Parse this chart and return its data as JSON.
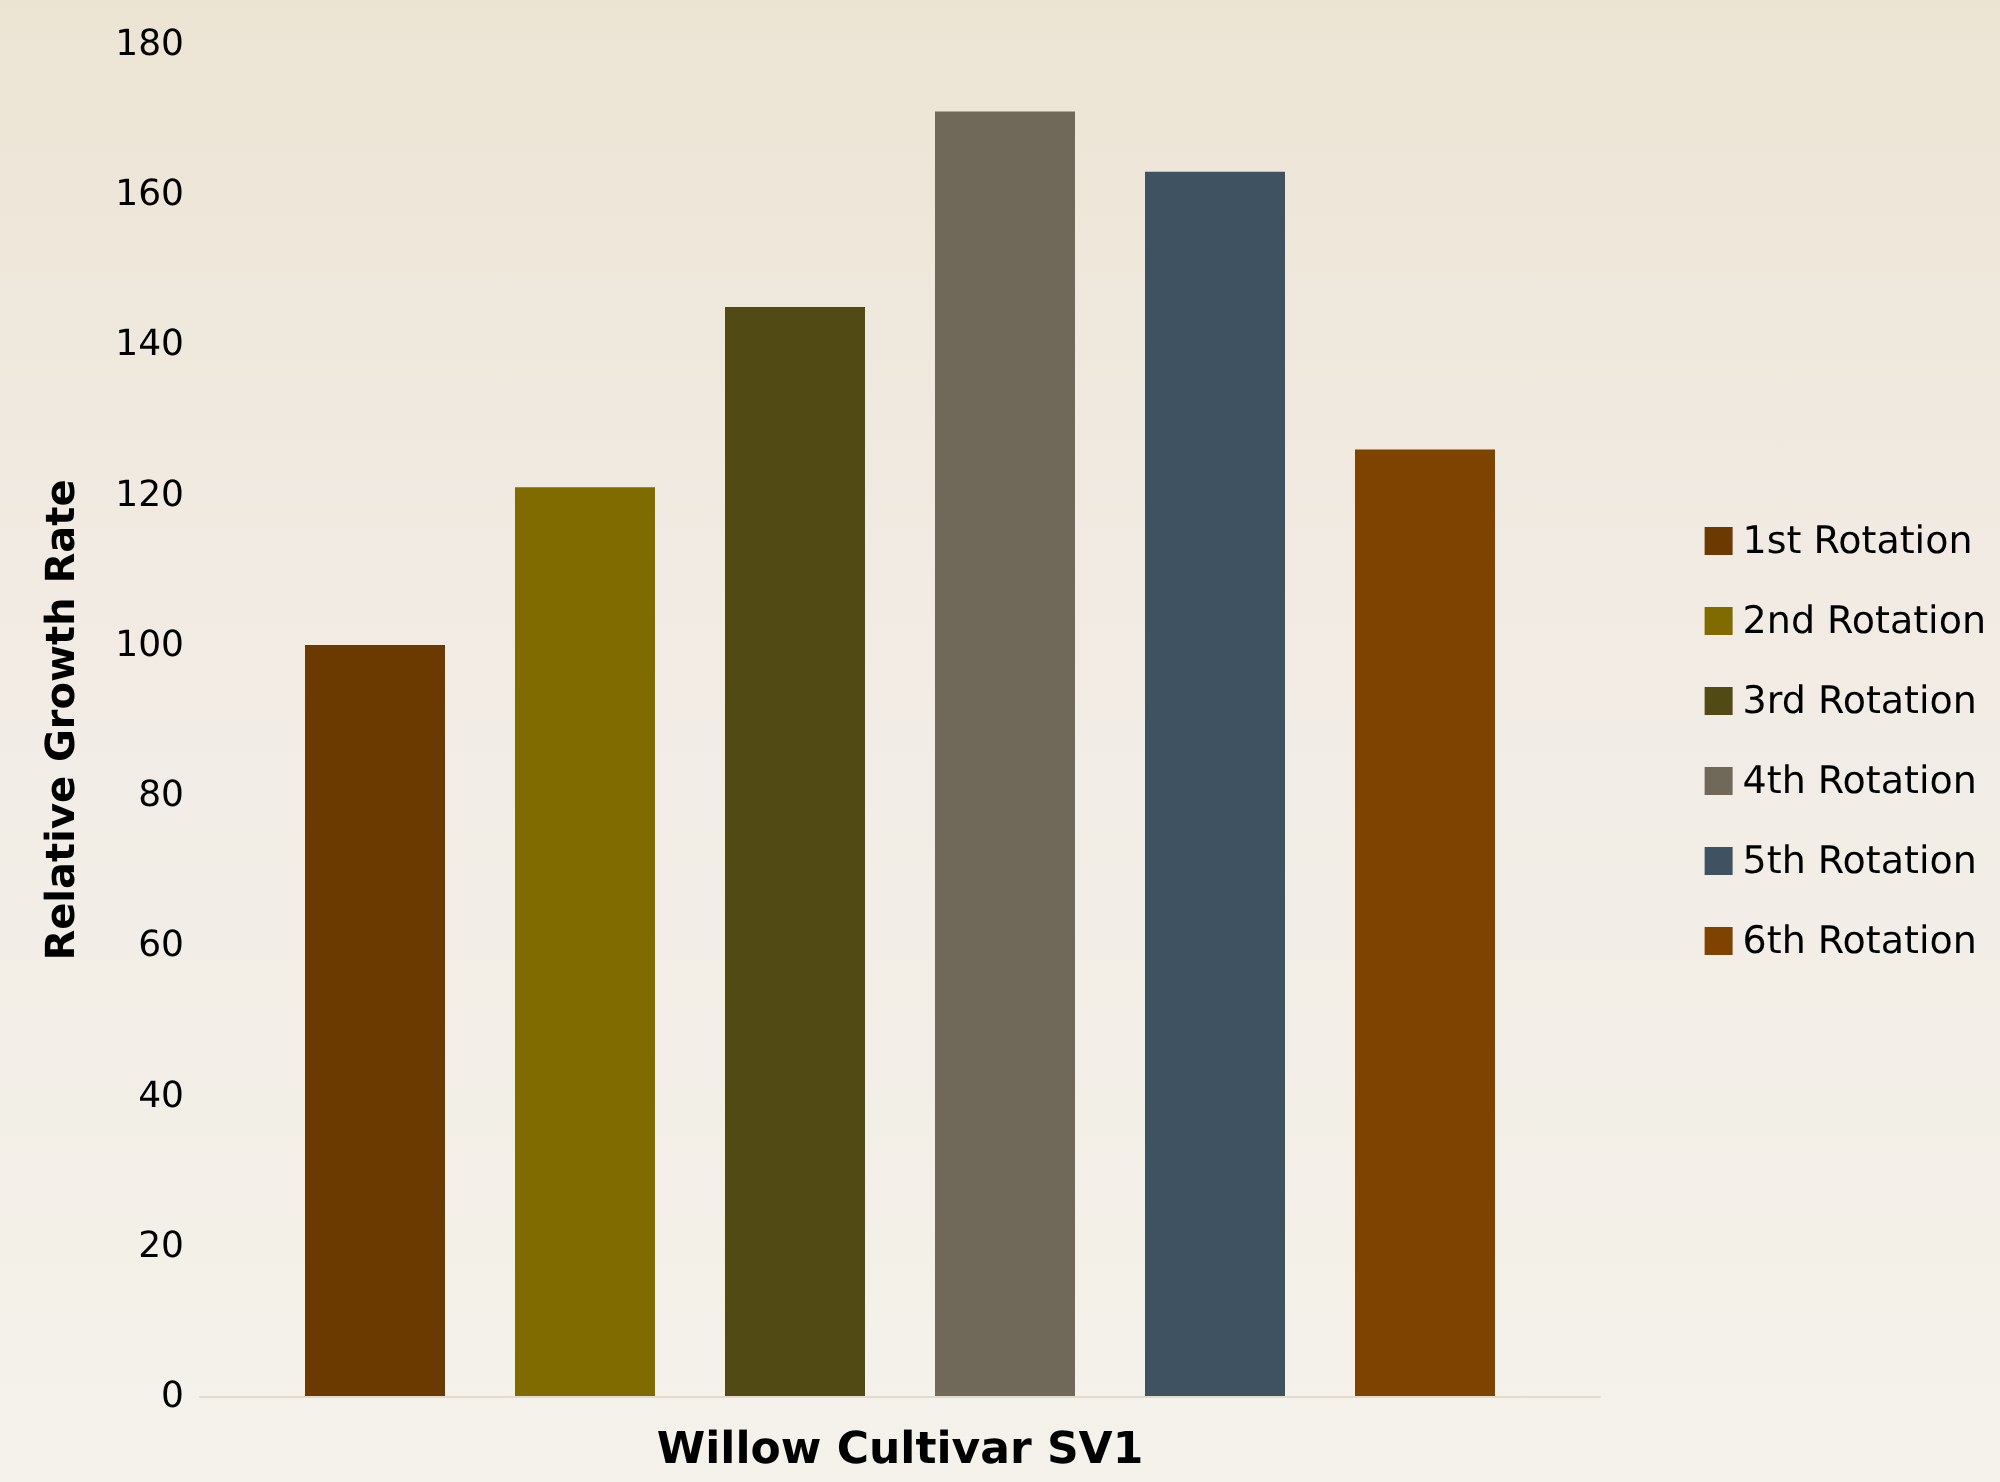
{
  "chart_data": {
    "type": "bar",
    "xlabel": "Willow Cultivar SV1",
    "ylabel": "Relative Growth Rate",
    "categories": [
      null
    ],
    "series": [
      {
        "name": "1st Rotation",
        "color": "#6b3a00",
        "values": [
          100
        ]
      },
      {
        "name": "2nd Rotation",
        "color": "#7f6b00",
        "values": [
          121
        ]
      },
      {
        "name": "3rd Rotation",
        "color": "#514a14",
        "values": [
          145
        ]
      },
      {
        "name": "4th Rotation",
        "color": "#706858",
        "values": [
          171
        ]
      },
      {
        "name": "5th Rotation",
        "color": "#3e5261",
        "values": [
          163
        ]
      },
      {
        "name": "6th Rotation",
        "color": "#7f4300",
        "values": [
          126
        ]
      }
    ],
    "ylim": [
      0,
      180
    ],
    "yticks": [
      0,
      20,
      40,
      60,
      80,
      100,
      120,
      140,
      160,
      180
    ],
    "grid": false,
    "legend": "right"
  }
}
